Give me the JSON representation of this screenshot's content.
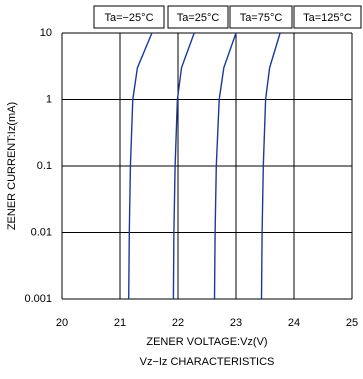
{
  "chart_data": {
    "type": "line",
    "title": "Vz−Iz CHARACTERISTICS",
    "x_label": "ZENER VOLTAGE:Vz(V)",
    "y_label": "ZENER CURRENT:Iz(mA)",
    "xlim": [
      20,
      25
    ],
    "xticks": [
      20,
      21,
      22,
      23,
      24,
      25
    ],
    "ylim": [
      0.001,
      10
    ],
    "yticks": [
      10,
      1,
      0.1,
      0.01,
      0.001
    ],
    "y_scale": "log",
    "grid": true,
    "series": [
      {
        "name": "Ta=−25°C",
        "color": "#1a3a9a",
        "x": [
          21.15,
          21.16,
          21.18,
          21.22,
          21.3,
          21.55
        ],
        "values": [
          0.001,
          0.01,
          0.1,
          1,
          3,
          10
        ]
      },
      {
        "name": "Ta=25°C",
        "color": "#1a3a9a",
        "x": [
          21.92,
          21.93,
          21.95,
          21.99,
          22.06,
          22.28
        ],
        "values": [
          0.001,
          0.01,
          0.1,
          1,
          3,
          10
        ]
      },
      {
        "name": "Ta=75°C",
        "color": "#1a3a9a",
        "x": [
          22.63,
          22.64,
          22.66,
          22.71,
          22.79,
          23.0
        ],
        "values": [
          0.001,
          0.01,
          0.1,
          1,
          3,
          10
        ]
      },
      {
        "name": "Ta=125°C",
        "color": "#1a3a9a",
        "x": [
          23.44,
          23.45,
          23.47,
          23.51,
          23.58,
          23.76
        ],
        "values": [
          0.001,
          0.01,
          0.1,
          1,
          3,
          10
        ]
      }
    ]
  }
}
